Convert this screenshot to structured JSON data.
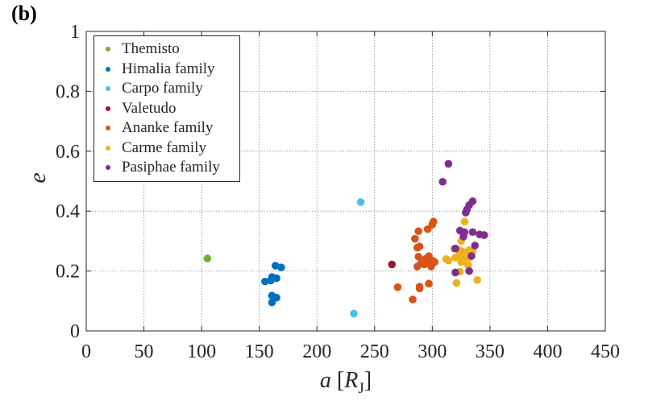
{
  "panel_label": "(b)",
  "chart_data": {
    "type": "scatter",
    "xlabel": "a [R_J]",
    "xlabel_parts": {
      "symbol": "a",
      "open": " [",
      "var": "R",
      "sub": "J",
      "close": "]"
    },
    "ylabel": "e",
    "xlim": [
      0,
      450
    ],
    "ylim": [
      0,
      1
    ],
    "xticks": [
      0,
      50,
      100,
      150,
      200,
      250,
      300,
      350,
      400,
      450
    ],
    "yticks": [
      0,
      0.2,
      0.4,
      0.6,
      0.8,
      1
    ],
    "ytick_labels": [
      "0",
      "0.2",
      "0.4",
      "0.6",
      "0.8",
      "1"
    ],
    "grid": true,
    "legend_position": "top-left",
    "series": [
      {
        "name": "Themisto",
        "color": "#77AC30",
        "points": [
          [
            105,
            0.242
          ]
        ]
      },
      {
        "name": "Himalia family",
        "color": "#0072BD",
        "points": [
          [
            164,
            0.218
          ],
          [
            169,
            0.212
          ],
          [
            155,
            0.165
          ],
          [
            160,
            0.168
          ],
          [
            161,
            0.18
          ],
          [
            165,
            0.176
          ],
          [
            161,
            0.118
          ],
          [
            165,
            0.111
          ],
          [
            161,
            0.095
          ]
        ]
      },
      {
        "name": "Carpo family",
        "color": "#4DBEEE",
        "points": [
          [
            238,
            0.43
          ],
          [
            232,
            0.058
          ]
        ]
      },
      {
        "name": "Valetudo",
        "color": "#A2142F",
        "points": [
          [
            265,
            0.222
          ]
        ]
      },
      {
        "name": "Ananke family",
        "color": "#D95319",
        "points": [
          [
            301,
            0.365
          ],
          [
            300,
            0.355
          ],
          [
            296,
            0.34
          ],
          [
            288,
            0.333
          ],
          [
            285,
            0.308
          ],
          [
            289,
            0.282
          ],
          [
            287,
            0.278
          ],
          [
            288,
            0.248
          ],
          [
            294,
            0.24
          ],
          [
            297,
            0.25
          ],
          [
            300,
            0.235
          ],
          [
            290,
            0.225
          ],
          [
            293,
            0.222
          ],
          [
            296,
            0.228
          ],
          [
            299,
            0.215
          ],
          [
            287,
            0.215
          ],
          [
            302,
            0.23
          ],
          [
            297,
            0.158
          ],
          [
            289,
            0.148
          ],
          [
            289,
            0.142
          ],
          [
            270,
            0.146
          ],
          [
            283,
            0.105
          ]
        ]
      },
      {
        "name": "Carme family",
        "color": "#EDB120",
        "points": [
          [
            328,
            0.365
          ],
          [
            325,
            0.3
          ],
          [
            319,
            0.275
          ],
          [
            323,
            0.27
          ],
          [
            326,
            0.265
          ],
          [
            329,
            0.262
          ],
          [
            332,
            0.27
          ],
          [
            335,
            0.265
          ],
          [
            324,
            0.255
          ],
          [
            329,
            0.25
          ],
          [
            332,
            0.245
          ],
          [
            327,
            0.24
          ],
          [
            320,
            0.245
          ],
          [
            312,
            0.24
          ],
          [
            314,
            0.235
          ],
          [
            325,
            0.23
          ],
          [
            331,
            0.22
          ],
          [
            324,
            0.198
          ],
          [
            321,
            0.16
          ],
          [
            339,
            0.17
          ]
        ]
      },
      {
        "name": "Pasiphae family",
        "color": "#7E2F8E",
        "points": [
          [
            314,
            0.558
          ],
          [
            309,
            0.498
          ],
          [
            335,
            0.433
          ],
          [
            332,
            0.42
          ],
          [
            330,
            0.405
          ],
          [
            329,
            0.395
          ],
          [
            324,
            0.335
          ],
          [
            328,
            0.33
          ],
          [
            335,
            0.33
          ],
          [
            341,
            0.322
          ],
          [
            345,
            0.32
          ],
          [
            327,
            0.315
          ],
          [
            337,
            0.285
          ],
          [
            320,
            0.275
          ],
          [
            334,
            0.25
          ],
          [
            320,
            0.195
          ],
          [
            332,
            0.2
          ]
        ]
      }
    ]
  }
}
